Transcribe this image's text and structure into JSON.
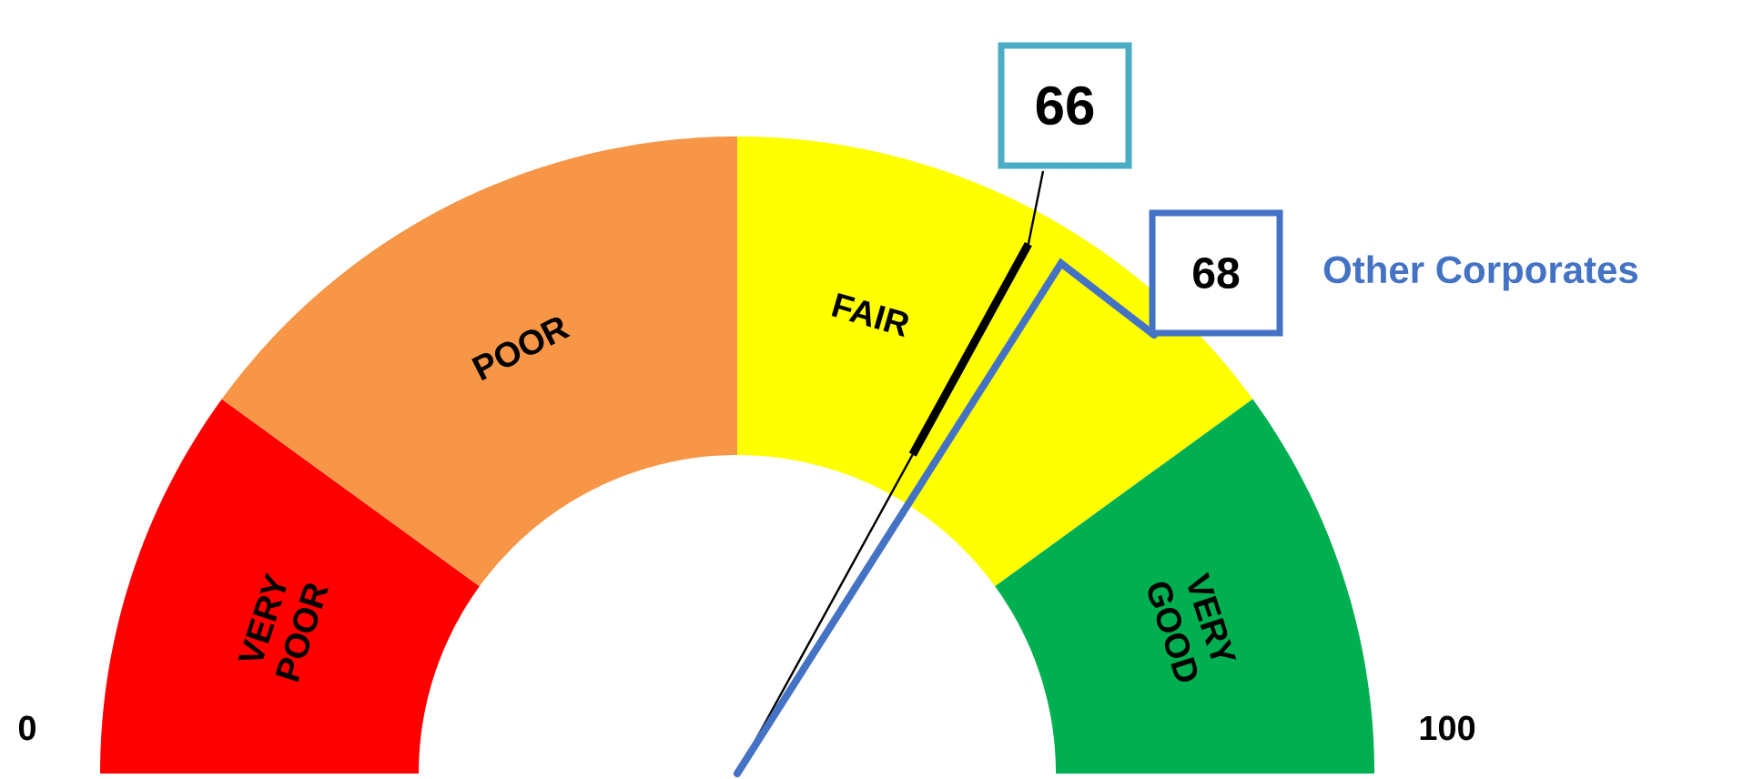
{
  "chart_data": {
    "type": "donut",
    "categories": [
      "VERY POOR",
      "POOR",
      "FAIR",
      "VERY GOOD"
    ],
    "values": [
      20,
      30,
      30,
      20
    ],
    "colors": [
      "#ff0000",
      "#f79646",
      "#ffff00",
      "#00b050"
    ],
    "needle": "FAIR",
    "annotations": [
      "0",
      "100",
      "66",
      "68",
      "Other Corporates"
    ]
  }
}
